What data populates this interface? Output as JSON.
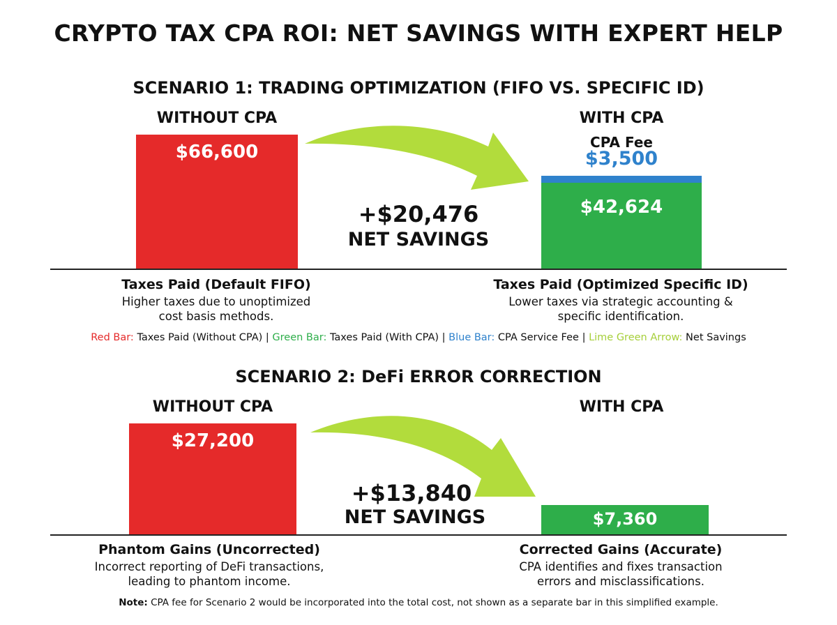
{
  "title": "CRYPTO TAX CPA ROI: NET SAVINGS WITH EXPERT HELP",
  "colors": {
    "red": "#e52a2a",
    "green": "#2eae4a",
    "blue": "#2f82cc",
    "lime": "#b2dc3c"
  },
  "chart_data": [
    {
      "type": "bar",
      "title": "SCENARIO 1: TRADING OPTIMIZATION (FIFO VS. SPECIFIC ID)",
      "categories": [
        "WITHOUT CPA",
        "WITH CPA"
      ],
      "series": [
        {
          "name": "Taxes Paid (Without CPA)",
          "values": [
            66600,
            null
          ],
          "label": "$66,600"
        },
        {
          "name": "Taxes Paid (With CPA)",
          "values": [
            null,
            42624
          ],
          "label": "$42,624"
        },
        {
          "name": "CPA Service Fee",
          "values": [
            null,
            3500
          ],
          "label": "$3,500"
        }
      ],
      "fee_label": "CPA Fee",
      "net_savings": {
        "value": 20476,
        "amount": "+$20,476",
        "label": "NET SAVINGS"
      },
      "left_desc": {
        "title": "Taxes Paid (Default FIFO)",
        "lines": [
          "Higher taxes due to unoptimized",
          "cost basis methods."
        ]
      },
      "right_desc": {
        "title": "Taxes Paid (Optimized Specific ID)",
        "lines": [
          "Lower taxes via strategic accounting &",
          "specific identification."
        ]
      }
    },
    {
      "type": "bar",
      "title": "SCENARIO 2: DeFi ERROR CORRECTION",
      "categories": [
        "WITHOUT CPA",
        "WITH CPA"
      ],
      "series": [
        {
          "name": "Phantom Gains (Uncorrected)",
          "values": [
            27200,
            null
          ],
          "label": "$27,200"
        },
        {
          "name": "Corrected Gains (Accurate)",
          "values": [
            null,
            7360
          ],
          "label": "$7,360"
        }
      ],
      "net_savings": {
        "value": 13840,
        "amount": "+$13,840",
        "label": "NET SAVINGS"
      },
      "left_desc": {
        "title": "Phantom Gains (Uncorrected)",
        "lines": [
          "Incorrect reporting of DeFi transactions,",
          "leading to phantom income."
        ]
      },
      "right_desc": {
        "title": "Corrected Gains (Accurate)",
        "lines": [
          "CPA identifies and fixes transaction",
          "errors and misclassifications."
        ]
      }
    }
  ],
  "legend": {
    "red_key": "Red Bar:",
    "red_text": "Taxes Paid (Without CPA)",
    "sep": "|",
    "green_key": "Green Bar:",
    "green_text": "Taxes Paid (With CPA)",
    "blue_key": "Blue Bar:",
    "blue_text": "CPA Service Fee",
    "lime_key": "Lime Green Arrow:",
    "lime_text": "Net Savings"
  },
  "note": {
    "label": "Note:",
    "text": "CPA fee for Scenario 2 would be incorporated into the total cost, not shown as a separate bar in this simplified example."
  }
}
